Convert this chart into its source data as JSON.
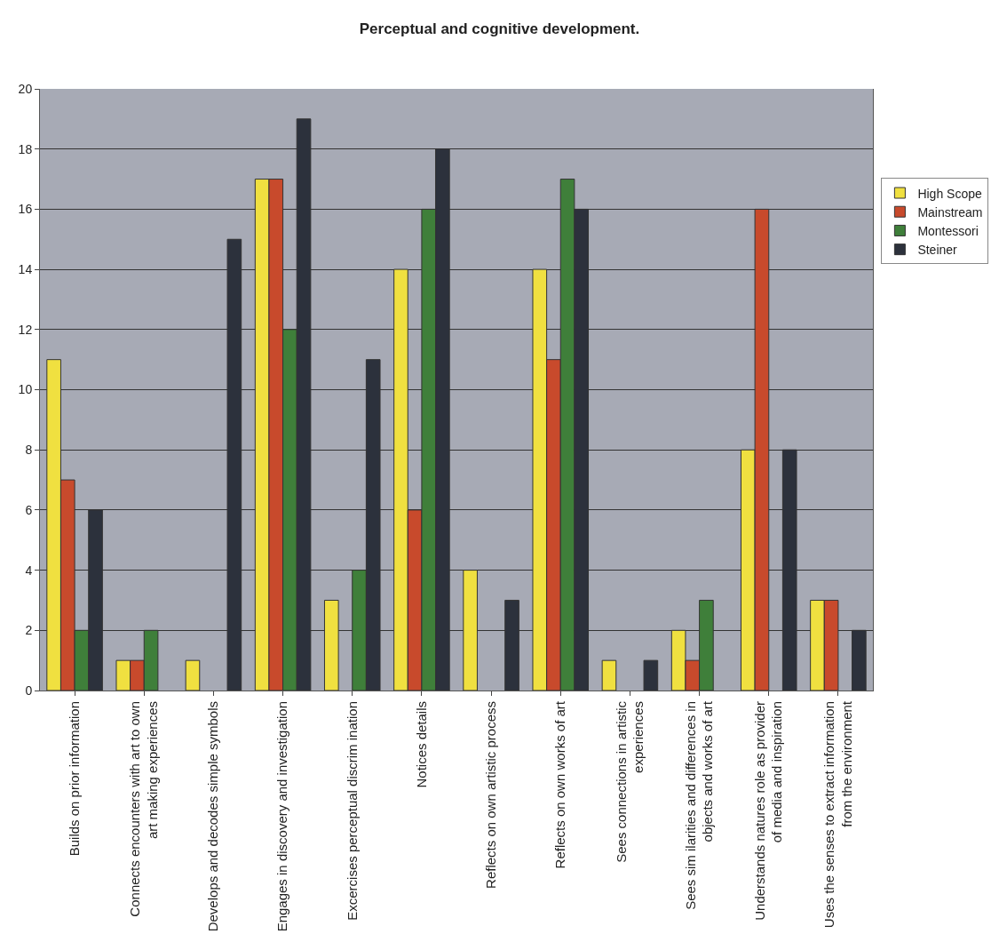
{
  "chart_data": {
    "type": "bar",
    "title": "Perceptual and cognitive development.",
    "categories": [
      "Builds on prior information",
      "Connects encounters with art to own art making experiences",
      "Develops and decodes simple symbols",
      "Engages in discovery and investigation",
      "Excercises perceptual discrim ination",
      "Notices details",
      "Reflects on own artistic process",
      "Reflects on own works of art",
      "Sees connections in artistic experiences",
      "Sees sim ilarities and differences in objects and works of art",
      "Understands natures role as provider of media and inspiration",
      "Uses the senses to extract information from the environment"
    ],
    "series": [
      {
        "name": "High Scope",
        "color": "#f0e040",
        "values": [
          11,
          1,
          1,
          17,
          3,
          14,
          4,
          14,
          1,
          2,
          8,
          3
        ]
      },
      {
        "name": "Mainstream",
        "color": "#c84a2c",
        "values": [
          7,
          1,
          0,
          17,
          0,
          6,
          0,
          11,
          0,
          1,
          16,
          3
        ]
      },
      {
        "name": "Montessori",
        "color": "#3f7f3a",
        "values": [
          2,
          2,
          0,
          12,
          4,
          16,
          0,
          17,
          0,
          3,
          0,
          0
        ]
      },
      {
        "name": "Steiner",
        "color": "#2c313c",
        "values": [
          6,
          0,
          15,
          19,
          11,
          18,
          3,
          16,
          1,
          0,
          8,
          2
        ]
      }
    ],
    "ylim": [
      0,
      20
    ],
    "yticks": [
      0,
      2,
      4,
      6,
      8,
      10,
      12,
      14,
      16,
      18,
      20
    ],
    "grid": "y",
    "legend": "right"
  }
}
